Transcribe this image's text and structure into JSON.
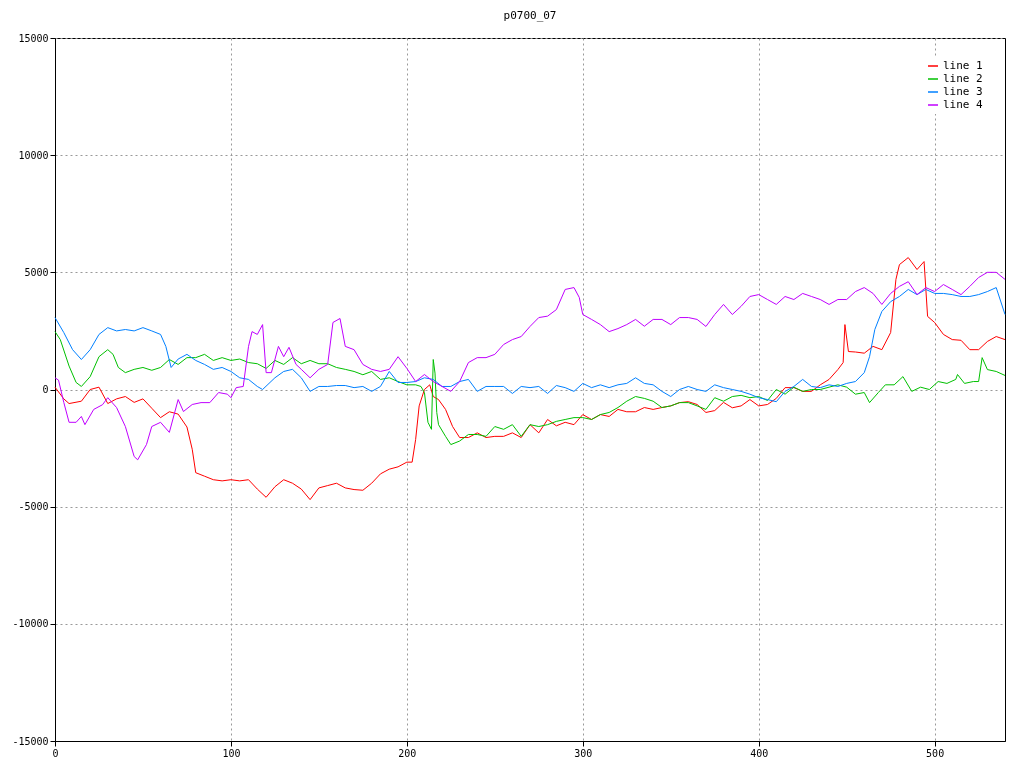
{
  "chart_data": {
    "type": "line",
    "title": "p0700_07",
    "xlim": [
      0,
      540
    ],
    "ylim": [
      -15000,
      15000
    ],
    "xticks": [
      0,
      100,
      200,
      300,
      400,
      500
    ],
    "yticks": [
      -15000,
      -10000,
      -5000,
      0,
      5000,
      10000,
      15000
    ],
    "grid": true,
    "legend": "top right",
    "series": [
      {
        "name": "line 1",
        "color": "#ff0000",
        "x": [
          0,
          5,
          8,
          15,
          20,
          25,
          30,
          35,
          40,
          45,
          50,
          55,
          60,
          65,
          70,
          75,
          78,
          80,
          85,
          90,
          95,
          100,
          105,
          110,
          115,
          120,
          125,
          130,
          135,
          140,
          145,
          150,
          155,
          160,
          165,
          170,
          175,
          180,
          185,
          190,
          195,
          200,
          203,
          205,
          207,
          210,
          213,
          215,
          218,
          222,
          226,
          230,
          235,
          240,
          245,
          250,
          255,
          260,
          265,
          270,
          275,
          280,
          285,
          290,
          295,
          300,
          305,
          310,
          315,
          320,
          325,
          330,
          335,
          340,
          345,
          350,
          355,
          360,
          365,
          370,
          375,
          380,
          385,
          390,
          395,
          400,
          405,
          410,
          415,
          420,
          425,
          430,
          435,
          440,
          445,
          448,
          449,
          451,
          455,
          460,
          465,
          470,
          475,
          478,
          480,
          485,
          490,
          494,
          496,
          500,
          505,
          510,
          515,
          520,
          525,
          530,
          535,
          540
        ],
        "values": [
          100,
          -400,
          -600,
          -500,
          0,
          100,
          -600,
          -400,
          -300,
          -550,
          -400,
          -800,
          -1200,
          -950,
          -1050,
          -1600,
          -2550,
          -3550,
          -3700,
          -3850,
          -3900,
          -3850,
          -3900,
          -3850,
          -4250,
          -4600,
          -4150,
          -3850,
          -4000,
          -4250,
          -4700,
          -4200,
          -4100,
          -4000,
          -4200,
          -4270,
          -4300,
          -4000,
          -3600,
          -3400,
          -3300,
          -3100,
          -3100,
          -2130,
          -700,
          0,
          200,
          -300,
          -430,
          -850,
          -1580,
          -2050,
          -2050,
          -1850,
          -2050,
          -2000,
          -2000,
          -1850,
          -2050,
          -1500,
          -1850,
          -1280,
          -1550,
          -1400,
          -1500,
          -1070,
          -1280,
          -1070,
          -1150,
          -850,
          -950,
          -950,
          -770,
          -850,
          -770,
          -700,
          -560,
          -520,
          -640,
          -980,
          -900,
          -550,
          -780,
          -700,
          -430,
          -700,
          -640,
          -380,
          80,
          80,
          -80,
          -80,
          200,
          430,
          850,
          1150,
          2770,
          1620,
          1600,
          1550,
          1840,
          1700,
          2430,
          4700,
          5330,
          5630,
          5120,
          5460,
          3120,
          2860,
          2350,
          2130,
          2100,
          1700,
          1700,
          2050,
          2260,
          2130
        ]
      },
      {
        "name": "line 2",
        "color": "#00c000",
        "x": [
          0,
          3,
          8,
          12,
          15,
          20,
          25,
          30,
          33,
          36,
          40,
          45,
          50,
          55,
          60,
          65,
          70,
          75,
          80,
          85,
          90,
          95,
          100,
          105,
          110,
          115,
          120,
          125,
          130,
          135,
          140,
          145,
          150,
          155,
          160,
          165,
          170,
          175,
          180,
          185,
          190,
          195,
          200,
          205,
          208,
          210,
          212,
          214,
          215,
          216,
          217,
          218,
          222,
          225,
          230,
          235,
          240,
          245,
          250,
          255,
          260,
          265,
          270,
          275,
          280,
          285,
          290,
          295,
          300,
          305,
          310,
          315,
          320,
          325,
          330,
          335,
          340,
          345,
          350,
          355,
          360,
          365,
          370,
          375,
          380,
          385,
          390,
          395,
          400,
          405,
          410,
          415,
          420,
          425,
          430,
          435,
          440,
          445,
          450,
          455,
          460,
          463,
          468,
          472,
          477,
          482,
          487,
          492,
          497,
          502,
          507,
          512,
          513,
          517,
          522,
          525,
          527,
          530,
          535,
          540
        ],
        "values": [
          2470,
          2130,
          1000,
          300,
          130,
          550,
          1400,
          1700,
          1500,
          940,
          720,
          860,
          940,
          820,
          940,
          1280,
          1070,
          1360,
          1360,
          1500,
          1240,
          1360,
          1240,
          1300,
          1150,
          1100,
          900,
          1240,
          1070,
          1360,
          1100,
          1240,
          1100,
          1100,
          940,
          860,
          770,
          630,
          770,
          430,
          500,
          340,
          200,
          200,
          130,
          -130,
          -1400,
          -1700,
          1280,
          700,
          -980,
          -1500,
          -2000,
          -2350,
          -2200,
          -1920,
          -1920,
          -2000,
          -1580,
          -1700,
          -1500,
          -2000,
          -1500,
          -1580,
          -1500,
          -1360,
          -1280,
          -1200,
          -1200,
          -1280,
          -1070,
          -980,
          -770,
          -500,
          -300,
          -380,
          -500,
          -770,
          -700,
          -560,
          -560,
          -700,
          -850,
          -350,
          -500,
          -300,
          -250,
          -350,
          -300,
          -470,
          0,
          -200,
          100,
          -80,
          0,
          0,
          100,
          200,
          100,
          -200,
          -130,
          -560,
          -130,
          200,
          200,
          550,
          -80,
          100,
          0,
          340,
          260,
          430,
          640,
          260,
          340,
          340,
          1360,
          850,
          770,
          600
        ]
      },
      {
        "name": "line 3",
        "color": "#0080ff",
        "x": [
          0,
          5,
          10,
          15,
          20,
          25,
          30,
          35,
          40,
          45,
          50,
          55,
          60,
          63,
          66,
          70,
          75,
          80,
          85,
          90,
          95,
          100,
          105,
          110,
          115,
          118,
          125,
          130,
          135,
          140,
          145,
          150,
          155,
          160,
          165,
          170,
          175,
          180,
          185,
          190,
          195,
          200,
          205,
          210,
          215,
          220,
          225,
          230,
          235,
          240,
          245,
          250,
          255,
          260,
          265,
          270,
          275,
          280,
          285,
          290,
          295,
          300,
          305,
          310,
          315,
          320,
          325,
          330,
          335,
          340,
          345,
          350,
          355,
          360,
          365,
          370,
          375,
          380,
          385,
          390,
          395,
          400,
          405,
          410,
          415,
          420,
          425,
          430,
          435,
          440,
          445,
          450,
          455,
          460,
          463,
          466,
          470,
          475,
          480,
          485,
          490,
          495,
          500,
          505,
          510,
          515,
          520,
          525,
          530,
          535,
          540
        ],
        "values": [
          3070,
          2430,
          1700,
          1280,
          1700,
          2350,
          2640,
          2500,
          2560,
          2500,
          2640,
          2500,
          2350,
          1840,
          940,
          1300,
          1500,
          1240,
          1070,
          860,
          940,
          770,
          500,
          430,
          130,
          0,
          500,
          770,
          860,
          500,
          -80,
          130,
          130,
          170,
          170,
          80,
          130,
          -80,
          130,
          770,
          300,
          300,
          340,
          500,
          430,
          130,
          130,
          340,
          430,
          -80,
          130,
          130,
          130,
          -170,
          130,
          80,
          130,
          -170,
          170,
          80,
          -80,
          260,
          80,
          200,
          80,
          200,
          260,
          500,
          260,
          200,
          -80,
          -300,
          0,
          130,
          0,
          -80,
          200,
          80,
          0,
          -80,
          -200,
          -350,
          -430,
          -520,
          -80,
          130,
          430,
          130,
          80,
          200,
          130,
          260,
          340,
          720,
          1400,
          2560,
          3330,
          3750,
          3970,
          4270,
          4050,
          4270,
          4100,
          4100,
          4050,
          3970,
          3970,
          4050,
          4180,
          4350,
          3200
        ]
      },
      {
        "name": "line 4",
        "color": "#c000ff",
        "x": [
          0,
          2,
          5,
          8,
          12,
          15,
          17,
          22,
          27,
          30,
          35,
          40,
          45,
          47,
          52,
          55,
          60,
          65,
          70,
          73,
          78,
          83,
          88,
          93,
          98,
          100,
          103,
          107,
          110,
          112,
          115,
          118,
          120,
          123,
          127,
          130,
          133,
          137,
          140,
          145,
          150,
          155,
          158,
          162,
          165,
          170,
          175,
          180,
          185,
          190,
          195,
          200,
          205,
          210,
          215,
          220,
          225,
          230,
          235,
          240,
          245,
          250,
          255,
          260,
          265,
          270,
          275,
          280,
          285,
          290,
          295,
          298,
          300,
          305,
          310,
          315,
          320,
          325,
          330,
          335,
          340,
          345,
          350,
          355,
          360,
          365,
          370,
          375,
          380,
          385,
          390,
          395,
          400,
          405,
          410,
          415,
          420,
          425,
          430,
          435,
          440,
          445,
          450,
          455,
          460,
          465,
          470,
          475,
          480,
          485,
          490,
          495,
          500,
          505,
          510,
          515,
          520,
          525,
          530,
          535,
          540
        ],
        "values": [
          500,
          400,
          -550,
          -1400,
          -1400,
          -1150,
          -1500,
          -850,
          -650,
          -350,
          -770,
          -1580,
          -2860,
          -3000,
          -2350,
          -1580,
          -1400,
          -1830,
          -430,
          -940,
          -640,
          -560,
          -560,
          -130,
          -200,
          -350,
          80,
          130,
          1840,
          2470,
          2350,
          2770,
          720,
          720,
          1840,
          1400,
          1800,
          1070,
          860,
          500,
          860,
          1070,
          2860,
          3030,
          1840,
          1700,
          1070,
          860,
          770,
          860,
          1400,
          900,
          340,
          640,
          340,
          130,
          -80,
          340,
          1150,
          1360,
          1360,
          1500,
          1920,
          2130,
          2260,
          2690,
          3070,
          3130,
          3410,
          4270,
          4350,
          3930,
          3200,
          2990,
          2770,
          2470,
          2600,
          2770,
          2990,
          2700,
          2990,
          2990,
          2770,
          3070,
          3070,
          2990,
          2690,
          3200,
          3630,
          3200,
          3550,
          3970,
          4050,
          3840,
          3630,
          3970,
          3840,
          4100,
          3970,
          3840,
          3630,
          3840,
          3840,
          4180,
          4350,
          4100,
          3630,
          4100,
          4400,
          4600,
          4050,
          4350,
          4180,
          4480,
          4270,
          4050,
          4400,
          4780,
          5000,
          5000,
          4700
        ]
      }
    ]
  }
}
